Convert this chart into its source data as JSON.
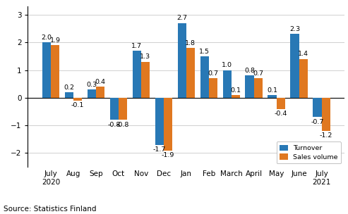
{
  "categories": [
    "July\n2020",
    "Aug",
    "Sep",
    "Oct",
    "Nov",
    "Dec",
    "Jan",
    "Feb",
    "March",
    "April",
    "May",
    "June",
    "July\n2021"
  ],
  "turnover": [
    2.0,
    0.2,
    0.3,
    -0.8,
    1.7,
    -1.7,
    2.7,
    1.5,
    1.0,
    0.8,
    0.1,
    2.3,
    -0.7
  ],
  "sales_volume": [
    1.9,
    -0.1,
    0.4,
    -0.8,
    1.3,
    -1.9,
    1.8,
    0.7,
    0.1,
    0.7,
    -0.4,
    1.4,
    -1.2
  ],
  "turnover_color": "#2878b5",
  "sales_volume_color": "#e07820",
  "ylim": [
    -2.5,
    3.3
  ],
  "yticks": [
    -2,
    -1,
    0,
    1,
    2,
    3
  ],
  "bar_width": 0.38,
  "legend_labels": [
    "Turnover",
    "Sales volume"
  ],
  "source_text": "Source: Statistics Finland",
  "grid_color": "#d0d0d0",
  "label_fontsize": 6.8,
  "axis_fontsize": 7.5,
  "source_fontsize": 7.5
}
